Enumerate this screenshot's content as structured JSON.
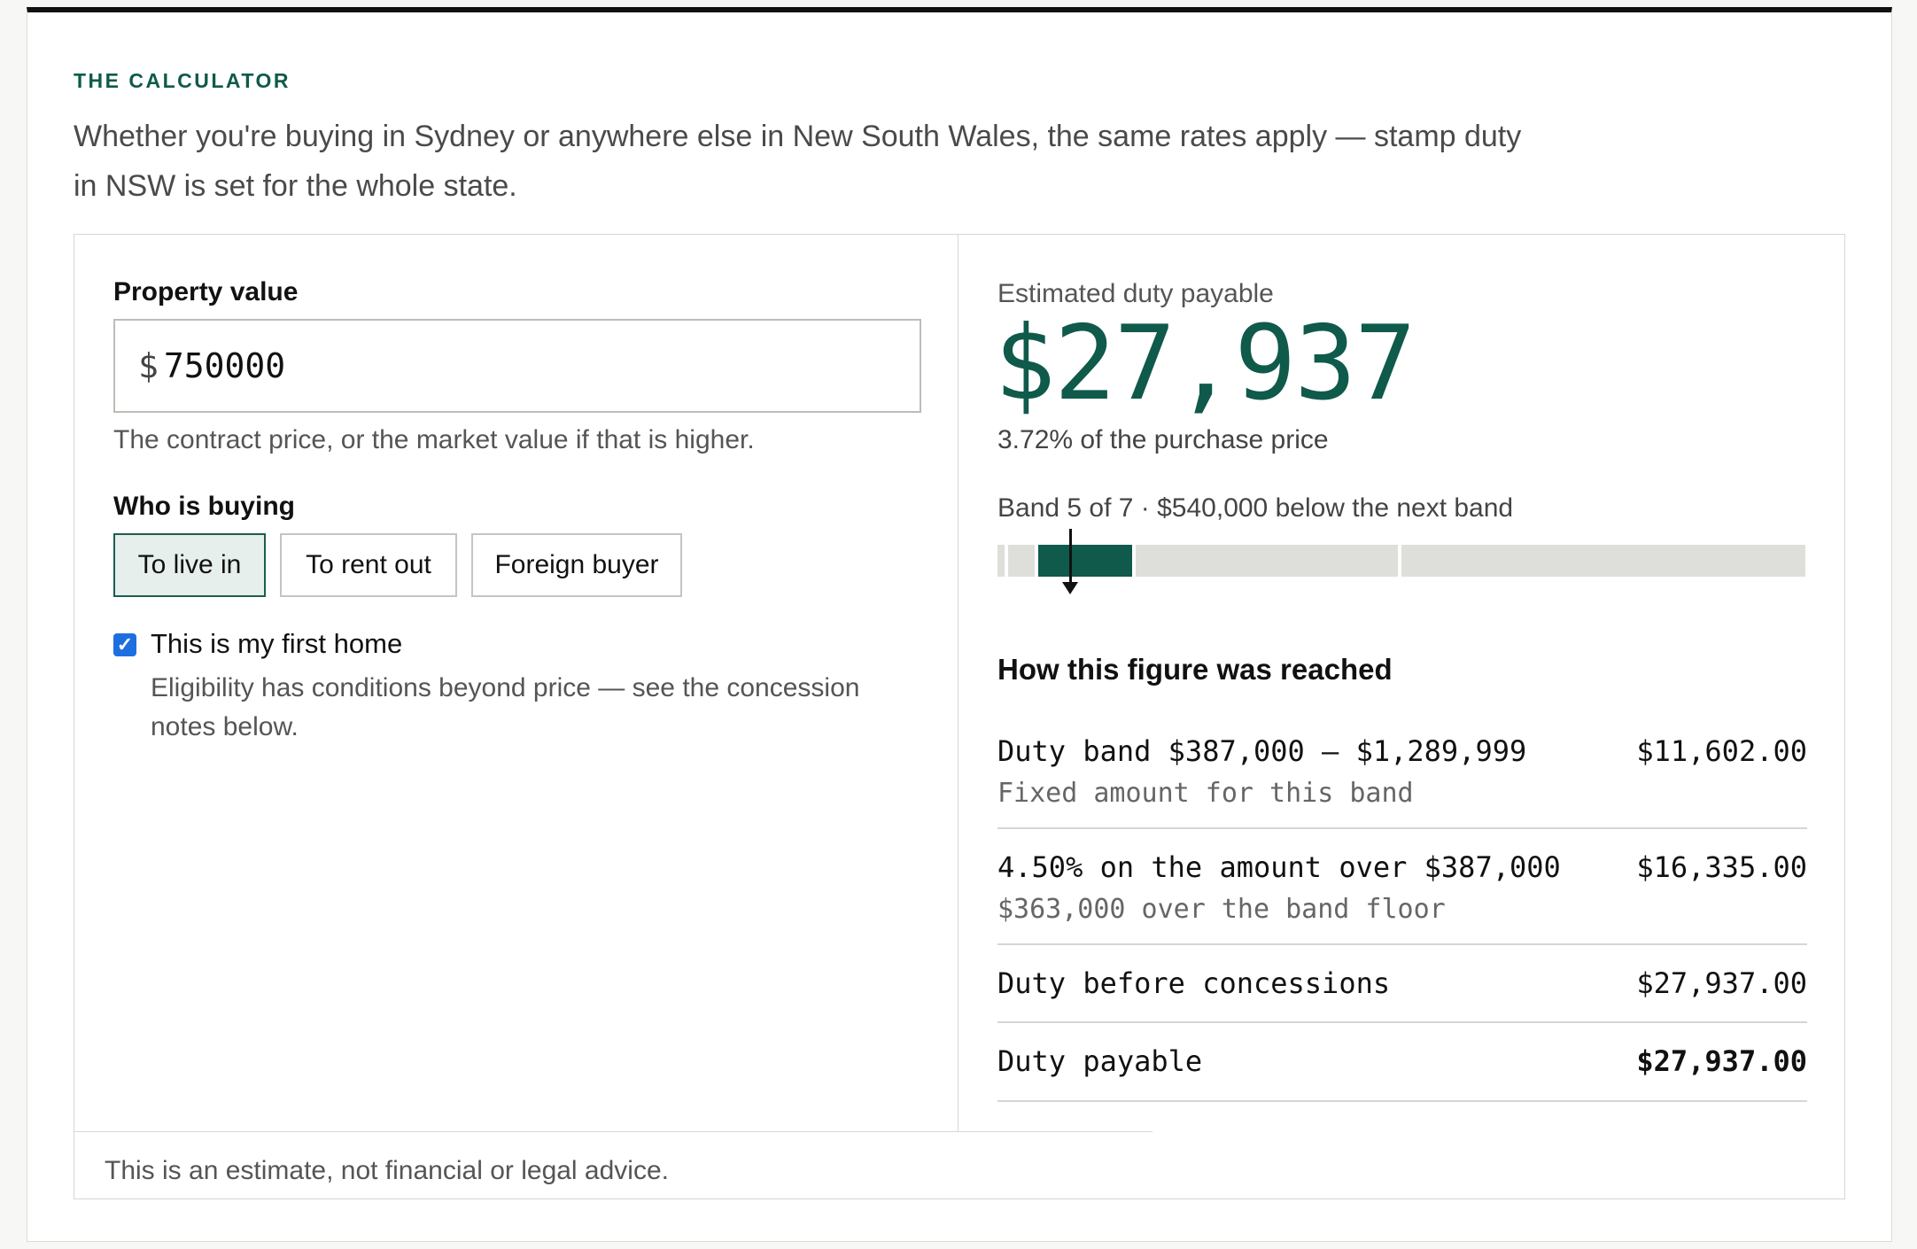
{
  "header": {
    "eyebrow": "THE CALCULATOR",
    "intro_line1": "Whether you're buying in Sydney or anywhere else in New South Wales, the same rates apply — stamp duty",
    "intro_line2": "in NSW is set for the whole state."
  },
  "form": {
    "property_value_label": "Property value",
    "currency_symbol": "$",
    "property_value": "750000",
    "property_value_hint": "The contract price, or the market value if that is higher.",
    "who_label": "Who is buying",
    "buyer_options": [
      {
        "label": "To live in",
        "selected": true
      },
      {
        "label": "To rent out",
        "selected": false
      },
      {
        "label": "Foreign buyer",
        "selected": false
      }
    ],
    "first_home_checked": true,
    "first_home_label": "This is my first home",
    "first_home_note_line1": "Eligibility has conditions beyond price — see the concession",
    "first_home_note_line2": "notes below."
  },
  "result": {
    "estimate_label": "Estimated duty payable",
    "amount": "$27,937",
    "percent_text": "3.72% of the purchase price",
    "band_caption": "Band 5 of 7 · $540,000 below the next band",
    "band_bar": {
      "active_band_index": 5,
      "total_bands": 7,
      "marker_fraction": 0.09,
      "active_color": "#0f5a4b",
      "inactive_color": "#dedfda"
    },
    "breakdown_title": "How this figure was reached",
    "rows": [
      {
        "main": "Duty band $387,000 – $1,289,999",
        "sub": "Fixed amount for this band",
        "amount": "$11,602.00"
      },
      {
        "main": "4.50% on the amount over $387,000",
        "sub": "$363,000 over the band floor",
        "amount": "$16,335.00"
      },
      {
        "main": "Duty before concessions",
        "sub": "",
        "amount": "$27,937.00"
      },
      {
        "main": "Duty payable",
        "sub": "",
        "amount": "$27,937.00"
      }
    ]
  },
  "footer": {
    "disclaimer": "This is an estimate, not financial or legal advice."
  },
  "colors": {
    "accent": "#0f5a4b",
    "checkbox": "#1d6fe0"
  }
}
